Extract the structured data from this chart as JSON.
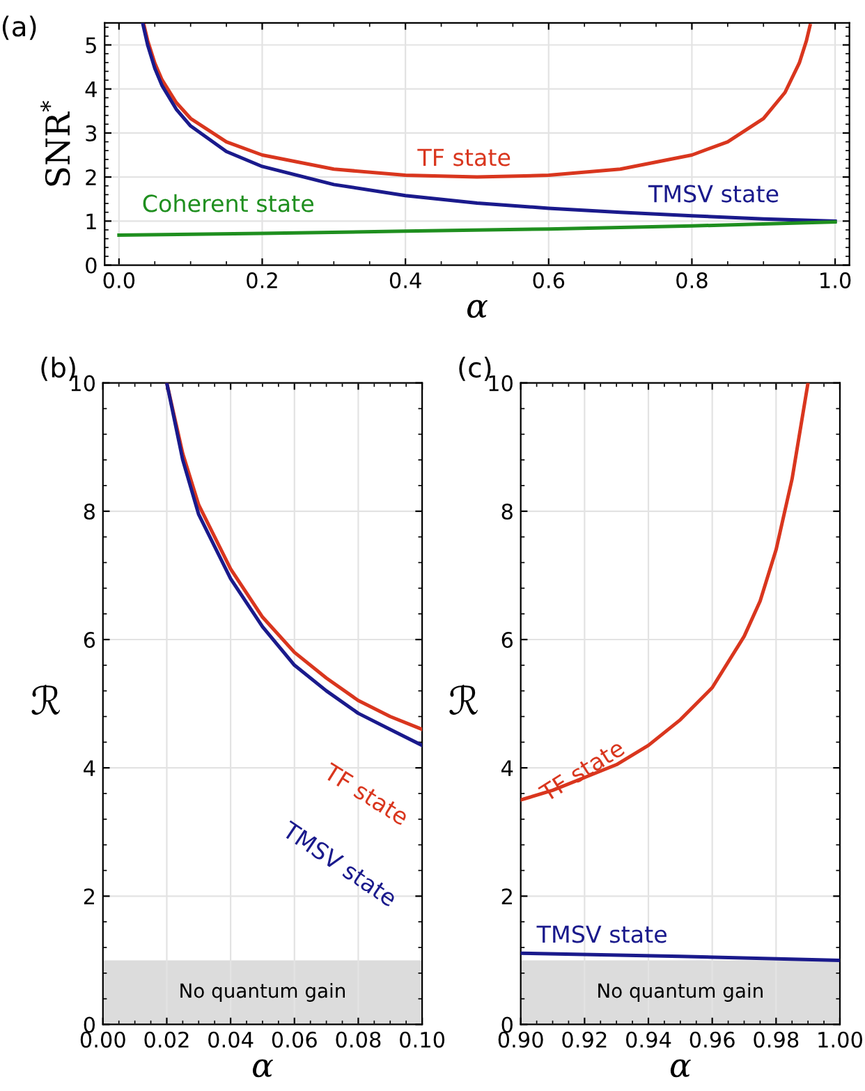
{
  "chart_data": [
    {
      "type": "line",
      "title": "(a)",
      "xlabel": "α",
      "ylabel": "SNR$^{*}$",
      "xlim": [
        -0.02,
        1.02
      ],
      "ylim": [
        0,
        5.5
      ],
      "xticks": [
        {
          "value": 0,
          "label": "0.0"
        },
        {
          "value": 0.2,
          "label": "0.2"
        },
        {
          "value": 0.4,
          "label": "0.4"
        },
        {
          "value": 0.6,
          "label": "0.6"
        },
        {
          "value": 0.8,
          "label": "0.8"
        },
        {
          "value": 1,
          "label": "1.0"
        }
      ],
      "yticks": [
        0,
        1,
        2,
        3,
        4,
        5
      ],
      "grid": true,
      "series": [
        {
          "name": "TF state",
          "color": "#d9361e",
          "x": [
            0.035,
            0.04,
            0.05,
            0.06,
            0.08,
            0.1,
            0.15,
            0.2,
            0.3,
            0.4,
            0.5,
            0.6,
            0.7,
            0.8,
            0.85,
            0.9,
            0.93,
            0.95,
            0.96,
            0.965
          ],
          "values": [
            5.44,
            5.1,
            4.59,
            4.21,
            3.69,
            3.33,
            2.8,
            2.5,
            2.18,
            2.04,
            2.0,
            2.04,
            2.18,
            2.5,
            2.8,
            3.33,
            3.92,
            4.59,
            5.1,
            5.44
          ]
        },
        {
          "name": "TMSV state",
          "color": "#1a1a8c",
          "x": [
            0.033,
            0.04,
            0.05,
            0.06,
            0.08,
            0.1,
            0.15,
            0.2,
            0.3,
            0.4,
            0.5,
            0.6,
            0.7,
            0.8,
            0.9,
            1.0
          ],
          "values": [
            5.5,
            5.0,
            4.47,
            4.08,
            3.54,
            3.16,
            2.58,
            2.24,
            1.83,
            1.58,
            1.41,
            1.29,
            1.2,
            1.12,
            1.05,
            1.0
          ]
        },
        {
          "name": "Coherent state",
          "color": "#1f8f1f",
          "x": [
            0,
            0.2,
            0.4,
            0.6,
            0.8,
            1.0
          ],
          "values": [
            0.68,
            0.72,
            0.77,
            0.82,
            0.89,
            0.98
          ]
        }
      ]
    },
    {
      "type": "line",
      "title": "(b)",
      "xlabel": "α",
      "ylabel": "ℛ",
      "xlim": [
        0,
        0.1
      ],
      "ylim": [
        0,
        10
      ],
      "xticks": [
        {
          "value": 0,
          "label": "0.00"
        },
        {
          "value": 0.02,
          "label": "0.02"
        },
        {
          "value": 0.04,
          "label": "0.04"
        },
        {
          "value": 0.06,
          "label": "0.06"
        },
        {
          "value": 0.08,
          "label": "0.08"
        },
        {
          "value": 0.1,
          "label": "0.10"
        }
      ],
      "yticks": [
        0,
        2,
        4,
        6,
        8,
        10
      ],
      "grid": true,
      "bands": [
        {
          "axis": "y",
          "from": 0,
          "to": 1,
          "label": "No quantum gain",
          "color": "#dcdcdc"
        }
      ],
      "series": [
        {
          "name": "TF state",
          "color": "#d9361e",
          "x": [
            0.02,
            0.025,
            0.03,
            0.04,
            0.05,
            0.06,
            0.07,
            0.08,
            0.09,
            0.1
          ],
          "values": [
            10.0,
            8.9,
            8.1,
            7.1,
            6.35,
            5.8,
            5.4,
            5.05,
            4.8,
            4.6
          ]
        },
        {
          "name": "TMSV state",
          "color": "#1a1a8c",
          "x": [
            0.02,
            0.025,
            0.03,
            0.04,
            0.05,
            0.06,
            0.07,
            0.08,
            0.09,
            0.1
          ],
          "values": [
            10.0,
            8.8,
            7.95,
            6.95,
            6.2,
            5.6,
            5.2,
            4.85,
            4.6,
            4.35
          ]
        }
      ]
    },
    {
      "type": "line",
      "title": "(c)",
      "xlabel": "α",
      "ylabel": "ℛ",
      "xlim": [
        0.9,
        1.0
      ],
      "ylim": [
        0,
        10
      ],
      "xticks": [
        {
          "value": 0.9,
          "label": "0.90"
        },
        {
          "value": 0.92,
          "label": "0.92"
        },
        {
          "value": 0.94,
          "label": "0.94"
        },
        {
          "value": 0.96,
          "label": "0.96"
        },
        {
          "value": 0.98,
          "label": "0.98"
        },
        {
          "value": 1.0,
          "label": "1.00"
        }
      ],
      "yticks": [
        0,
        2,
        4,
        6,
        8,
        10
      ],
      "grid": true,
      "bands": [
        {
          "axis": "y",
          "from": 0,
          "to": 1,
          "label": "No quantum gain",
          "color": "#dcdcdc"
        }
      ],
      "series": [
        {
          "name": "TF state",
          "color": "#d9361e",
          "x": [
            0.9,
            0.91,
            0.92,
            0.93,
            0.94,
            0.95,
            0.96,
            0.97,
            0.975,
            0.98,
            0.985,
            0.99
          ],
          "values": [
            3.5,
            3.65,
            3.85,
            4.05,
            4.35,
            4.75,
            5.25,
            6.05,
            6.6,
            7.4,
            8.5,
            10.0
          ]
        },
        {
          "name": "TMSV state",
          "color": "#1a1a8c",
          "x": [
            0.9,
            0.95,
            1.0
          ],
          "values": [
            1.11,
            1.06,
            1.0
          ]
        }
      ]
    }
  ]
}
